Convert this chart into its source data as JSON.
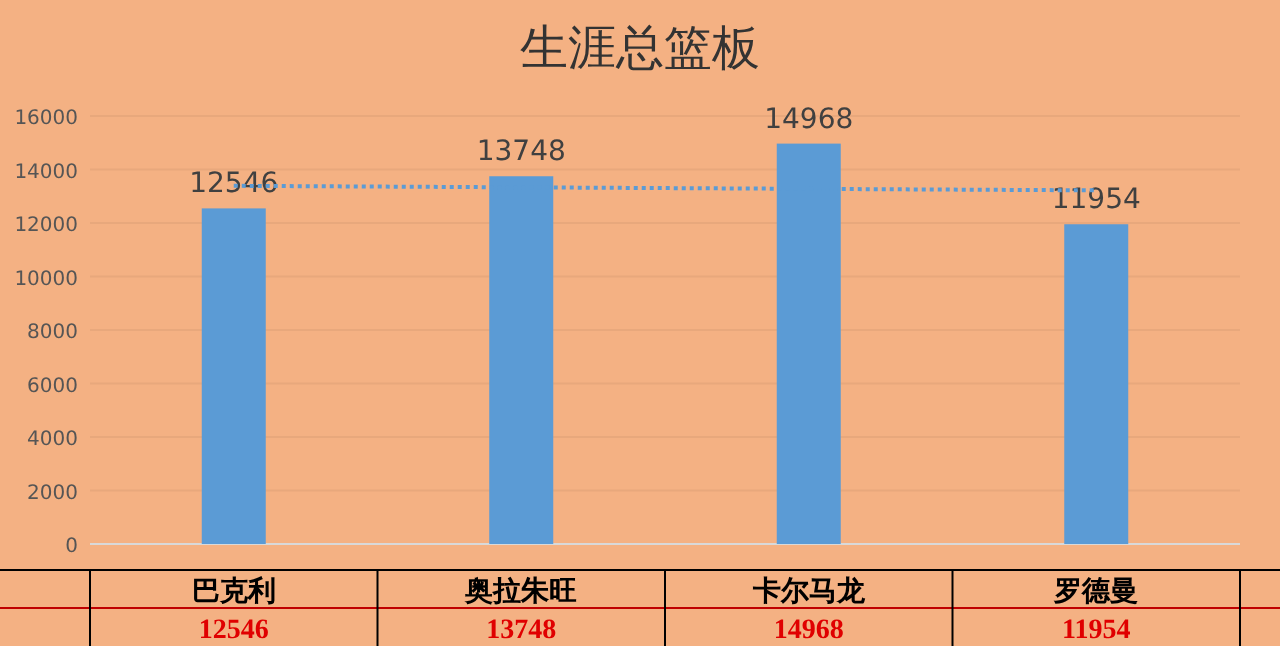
{
  "chart_data": {
    "type": "bar",
    "title": "生涯总篮板",
    "categories": [
      "巴克利",
      "奥拉朱旺",
      "卡尔马龙",
      "罗德曼"
    ],
    "series": [
      {
        "color": "#5b9bd5",
        "values": [
          12546,
          13748,
          14968,
          11954
        ],
        "value_labels": [
          "12546",
          "13748",
          "14968",
          "11954"
        ]
      },
      {
        "type": "line",
        "x": [
          "巴克利",
          "罗德曼"
        ],
        "values": [
          13390,
          13220
        ],
        "color": "#5b9bd5",
        "line_style": "dotted"
      }
    ],
    "ylim": [
      0,
      16000
    ],
    "yticks": [
      0,
      2000,
      4000,
      6000,
      8000,
      10000,
      12000,
      14000,
      16000
    ],
    "grid": "y"
  }
}
